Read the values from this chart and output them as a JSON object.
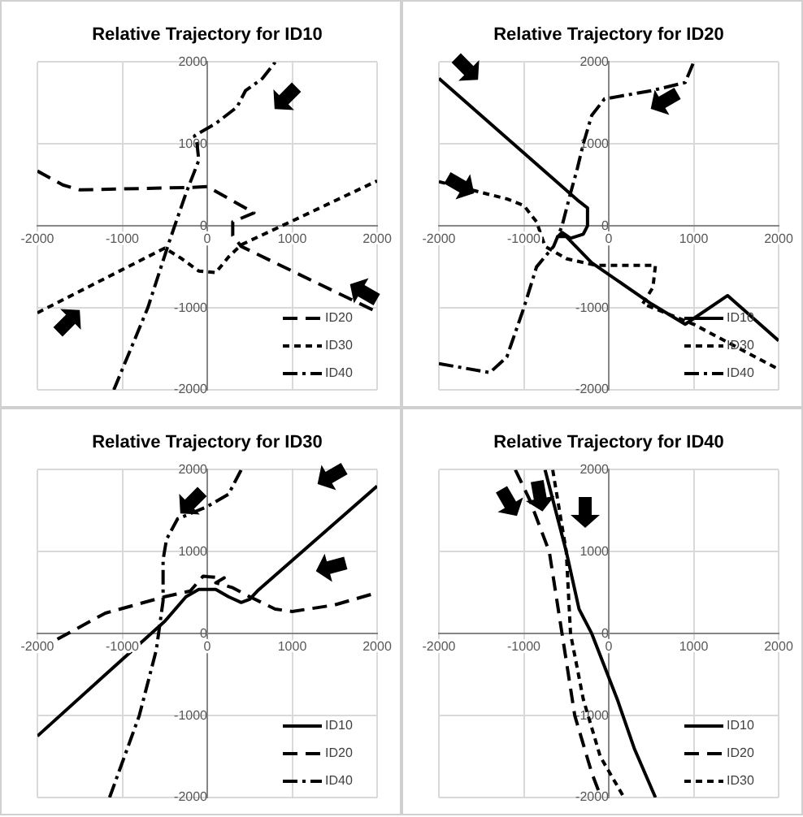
{
  "chart_data": [
    {
      "type": "line",
      "title": "Relative Trajectory for ID10",
      "xlim": [
        -2000,
        2000
      ],
      "ylim": [
        -2000,
        2000
      ],
      "xticks": [
        -2000,
        -1000,
        0,
        1000,
        2000
      ],
      "yticks": [
        -2000,
        -1000,
        0,
        1000,
        2000
      ],
      "grid": true,
      "legend": "bottom right",
      "marker": "none",
      "series": [
        {
          "name": "ID20",
          "color": "#000000",
          "line_style": "dashed",
          "x": [
            -2000,
            -1700,
            -1500,
            -200,
            0,
            550,
            300,
            300,
            400,
            1000,
            2000
          ],
          "values": [
            670,
            500,
            440,
            470,
            480,
            160,
            50,
            -120,
            -250,
            -550,
            -1050
          ]
        },
        {
          "name": "ID30",
          "color": "#000000",
          "line_style": "dotted",
          "x": [
            -2000,
            -500,
            -300,
            -100,
            100,
            250,
            400,
            1000,
            2000
          ],
          "values": [
            -1060,
            -270,
            -400,
            -550,
            -570,
            -380,
            -230,
            60,
            550
          ]
        },
        {
          "name": "ID40",
          "color": "#000000",
          "line_style": "dashdot",
          "x": [
            -1100,
            -700,
            -450,
            -250,
            -100,
            -120,
            -150,
            100,
            350,
            450,
            650,
            800
          ],
          "values": [
            -2000,
            -1000,
            -200,
            400,
            800,
            1000,
            1100,
            1250,
            1450,
            1650,
            1800,
            2000
          ]
        }
      ]
    },
    {
      "type": "line",
      "title": "Relative Trajectory for ID20",
      "xlim": [
        -2000,
        2000
      ],
      "ylim": [
        -2000,
        2000
      ],
      "xticks": [
        -2000,
        -1000,
        0,
        1000,
        2000
      ],
      "yticks": [
        -2000,
        -1000,
        0,
        1000,
        2000
      ],
      "grid": true,
      "legend": "bottom right",
      "marker": "none",
      "series": [
        {
          "name": "ID10",
          "color": "#000000",
          "line_style": "solid",
          "x": [
            -2000,
            -350,
            -250,
            -250,
            -300,
            -450,
            -550,
            -600,
            -500,
            -200,
            500,
            900,
            1400,
            2000
          ],
          "values": [
            1800,
            300,
            220,
            0,
            -100,
            -150,
            -80,
            -130,
            -130,
            -450,
            -950,
            -1200,
            -850,
            -1400
          ]
        },
        {
          "name": "ID30",
          "color": "#000000",
          "line_style": "dotted",
          "x": [
            -2000,
            -1200,
            -1000,
            -850,
            -750,
            -500,
            -150,
            550,
            520,
            400,
            1000,
            2000
          ],
          "values": [
            540,
            330,
            250,
            50,
            -250,
            -400,
            -480,
            -480,
            -750,
            -950,
            -1200,
            -1750
          ]
        },
        {
          "name": "ID40",
          "color": "#000000",
          "line_style": "dashdot",
          "x": [
            -2000,
            -1400,
            -1200,
            -1000,
            -850,
            -650,
            -550,
            -450,
            -370,
            -300,
            -200,
            -50,
            500,
            900,
            1000
          ],
          "values": [
            -1680,
            -1790,
            -1600,
            -1000,
            -500,
            -250,
            0,
            400,
            700,
            1000,
            1350,
            1550,
            1650,
            1750,
            2000
          ]
        }
      ]
    },
    {
      "type": "line",
      "title": "Relative Trajectory for ID30",
      "xlim": [
        -2000,
        2000
      ],
      "ylim": [
        -2000,
        2000
      ],
      "xticks": [
        -2000,
        -1000,
        0,
        1000,
        2000
      ],
      "yticks": [
        -2000,
        -1000,
        0,
        1000,
        2000
      ],
      "grid": true,
      "legend": "bottom right",
      "marker": "none",
      "series": [
        {
          "name": "ID10",
          "color": "#000000",
          "line_style": "solid",
          "x": [
            -2000,
            -1200,
            -500,
            -250,
            -100,
            100,
            250,
            400,
            500,
            600,
            2000
          ],
          "values": [
            -1250,
            -500,
            150,
            450,
            540,
            540,
            450,
            380,
            420,
            530,
            1800
          ]
        },
        {
          "name": "ID20",
          "color": "#000000",
          "line_style": "dashed",
          "x": [
            -2000,
            -1200,
            -500,
            -200,
            -50,
            200,
            100,
            300,
            500,
            800,
            1000,
            1500,
            2000
          ],
          "values": [
            -200,
            250,
            450,
            520,
            700,
            680,
            620,
            560,
            450,
            300,
            270,
            350,
            500
          ]
        },
        {
          "name": "ID40",
          "color": "#000000",
          "line_style": "dashdot",
          "x": [
            -1150,
            -800,
            -600,
            -520,
            -520,
            -480,
            -350,
            0,
            250,
            400
          ],
          "values": [
            -2000,
            -1000,
            -200,
            400,
            900,
            1150,
            1400,
            1550,
            1700,
            2000
          ]
        }
      ]
    },
    {
      "type": "line",
      "title": "Relative Trajectory for ID40",
      "xlim": [
        -2000,
        2000
      ],
      "ylim": [
        -2000,
        2000
      ],
      "xticks": [
        -2000,
        -1000,
        0,
        1000,
        2000
      ],
      "yticks": [
        -2000,
        -1000,
        0,
        1000,
        2000
      ],
      "grid": true,
      "legend": "bottom right",
      "marker": "none",
      "series": [
        {
          "name": "ID10",
          "color": "#000000",
          "line_style": "solid",
          "x": [
            -750,
            -500,
            -350,
            -200,
            100,
            300,
            550
          ],
          "values": [
            2000,
            1000,
            300,
            0,
            -800,
            -1400,
            -2000
          ]
        },
        {
          "name": "ID20",
          "color": "#000000",
          "line_style": "dashed",
          "x": [
            -1100,
            -930,
            -700,
            -550,
            -400,
            -200,
            -90
          ],
          "values": [
            2000,
            1630,
            1000,
            0,
            -1000,
            -1700,
            -2000
          ]
        },
        {
          "name": "ID30",
          "color": "#000000",
          "line_style": "dotted",
          "x": [
            -660,
            -500,
            -450,
            -300,
            -100,
            180
          ],
          "values": [
            2000,
            1000,
            0,
            -800,
            -1500,
            -2000
          ]
        }
      ]
    }
  ]
}
